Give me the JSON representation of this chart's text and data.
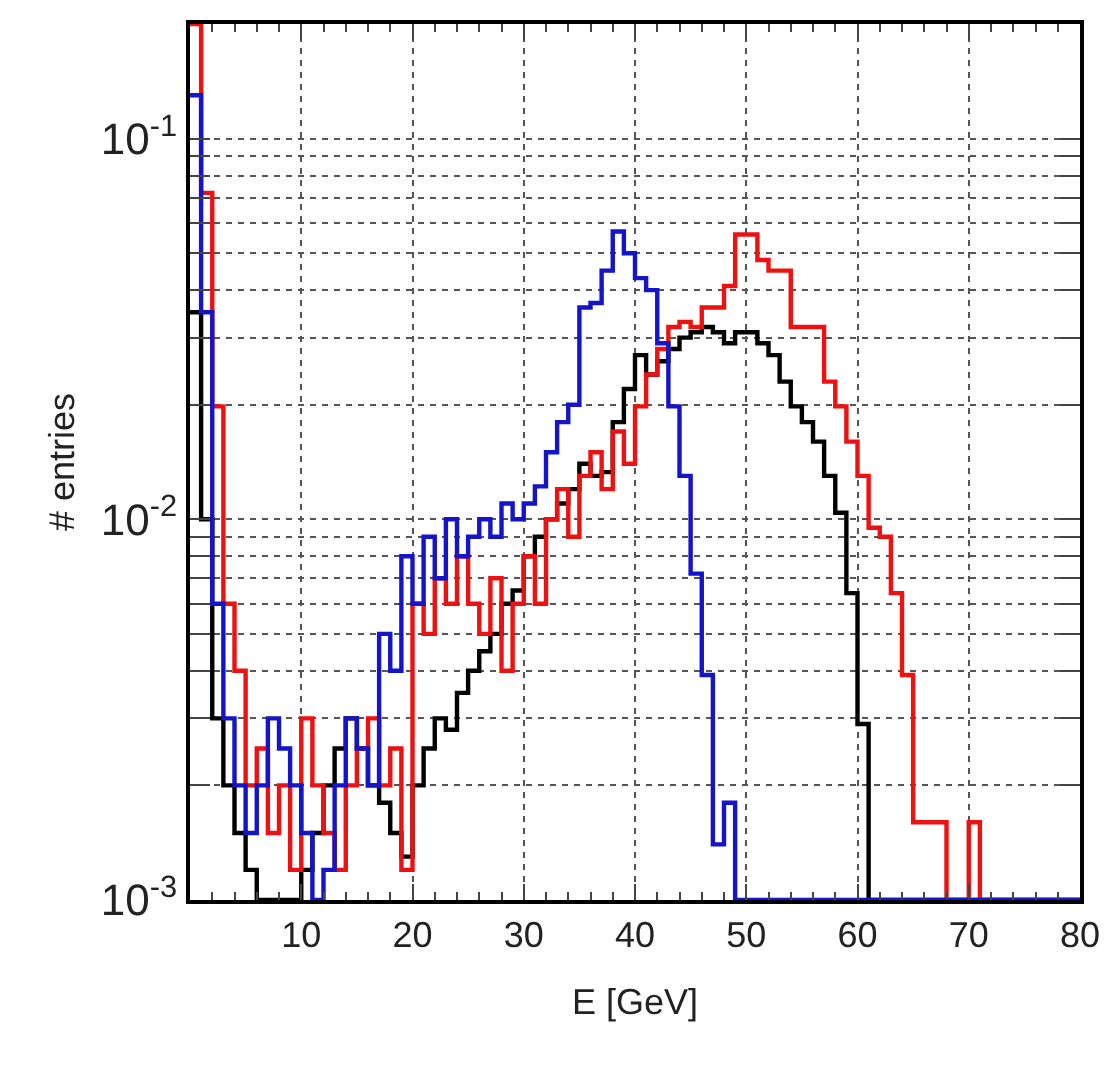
{
  "chart_data": {
    "type": "histogram",
    "xlabel": "E [GeV]",
    "ylabel": "# entries",
    "bins": [
      0,
      1,
      2,
      3,
      4,
      5,
      6,
      7,
      8,
      9,
      10,
      11,
      12,
      13,
      14,
      15,
      16,
      17,
      18,
      19,
      20,
      21,
      22,
      23,
      24,
      25,
      26,
      27,
      28,
      29,
      30,
      31,
      32,
      33,
      34,
      35,
      36,
      37,
      38,
      39,
      40,
      41,
      42,
      43,
      44,
      45,
      46,
      47,
      48,
      49,
      50,
      51,
      52,
      53,
      54,
      55,
      56,
      57,
      58,
      59,
      60,
      61,
      62,
      63,
      64,
      65,
      66,
      67,
      68,
      69,
      70,
      71,
      72,
      73,
      74,
      75,
      76,
      77,
      78,
      79,
      80
    ],
    "series": [
      {
        "color": "#000000",
        "values": [
          0.035,
          0.01,
          0.003,
          0.002,
          0.0015,
          0.0012,
          0.001,
          null,
          null,
          null,
          0.0012,
          0.0015,
          0.002,
          0.0025,
          0.003,
          0.0025,
          0.002,
          0.0018,
          0.0015,
          0.0013,
          0.002,
          0.0025,
          0.003,
          0.0028,
          0.0035,
          0.004,
          0.0045,
          0.005,
          0.006,
          0.0065,
          0.008,
          0.009,
          0.01,
          0.011,
          0.012,
          0.014,
          0.013,
          0.0133,
          0.018,
          0.022,
          0.027,
          0.024,
          0.026,
          0.028,
          0.03,
          0.031,
          0.032,
          0.031,
          0.029,
          0.031,
          0.031,
          0.029,
          0.027,
          0.023,
          0.0198,
          0.018,
          0.016,
          0.013,
          0.0104,
          0.0064,
          0.0029,
          0.001,
          null,
          null,
          null,
          null,
          null,
          null,
          null,
          null,
          null,
          null,
          null,
          null,
          null,
          null,
          null,
          null,
          null,
          null
        ]
      },
      {
        "color": "#ee1111",
        "values": [
          0.2,
          0.072,
          0.0198,
          0.006,
          0.004,
          0.002,
          0.0025,
          0.0015,
          0.002,
          0.0012,
          0.003,
          0.002,
          0.0015,
          0.0012,
          0.002,
          0.0025,
          0.003,
          0.002,
          0.0025,
          0.0012,
          0.006,
          0.005,
          0.007,
          0.006,
          0.008,
          0.006,
          0.005,
          0.007,
          0.004,
          0.006,
          0.008,
          0.006,
          0.01,
          0.012,
          0.009,
          0.013,
          0.015,
          0.012,
          0.017,
          0.014,
          0.0198,
          0.024,
          0.028,
          0.032,
          0.033,
          0.032,
          0.036,
          0.036,
          0.041,
          0.056,
          0.056,
          0.048,
          0.045,
          0.045,
          0.032,
          0.032,
          0.032,
          0.023,
          0.0198,
          0.016,
          0.013,
          0.0095,
          0.009,
          0.0064,
          0.0039,
          0.0016,
          0.0016,
          0.0016,
          null,
          null,
          0.0016,
          null,
          null,
          null,
          null,
          null,
          null,
          null,
          null,
          null
        ]
      },
      {
        "color": "#1414c8",
        "values": [
          0.13,
          0.035,
          0.006,
          0.003,
          0.002,
          0.0015,
          0.002,
          0.003,
          0.0025,
          0.002,
          0.0015,
          0.001,
          0.0012,
          0.002,
          0.003,
          0.0025,
          0.002,
          0.005,
          0.004,
          0.008,
          0.006,
          0.009,
          0.007,
          0.01,
          0.008,
          0.009,
          0.01,
          0.009,
          0.011,
          0.01,
          0.011,
          0.0122,
          0.015,
          0.018,
          0.02,
          0.036,
          0.037,
          0.045,
          0.057,
          0.05,
          0.043,
          0.04,
          0.029,
          0.0198,
          0.013,
          0.0072,
          0.0039,
          0.0014,
          0.0018,
          null,
          null,
          null,
          null,
          null,
          null,
          null,
          null,
          null,
          null,
          null,
          null,
          null,
          null,
          null,
          null,
          null,
          null,
          null,
          null,
          null,
          null,
          null,
          null,
          null,
          null,
          null,
          null,
          null,
          null,
          null
        ]
      }
    ],
    "xlim": [
      0,
      80
    ],
    "xticks": [
      10,
      20,
      30,
      40,
      50,
      60,
      70,
      80
    ],
    "ylim": [
      0.001,
      0.2
    ],
    "yticks": [
      {
        "value": 0.001,
        "label": "10$^{-3}$"
      },
      {
        "value": 0.002,
        "label": null
      },
      {
        "value": 0.003,
        "label": null
      },
      {
        "value": 0.004,
        "label": null
      },
      {
        "value": 0.005,
        "label": null
      },
      {
        "value": 0.006,
        "label": null
      },
      {
        "value": 0.007,
        "label": null
      },
      {
        "value": 0.008,
        "label": null
      },
      {
        "value": 0.009,
        "label": null
      },
      {
        "value": 0.01,
        "label": "10$^{-2}$"
      },
      {
        "value": 0.02,
        "label": null
      },
      {
        "value": 0.03,
        "label": null
      },
      {
        "value": 0.04,
        "label": null
      },
      {
        "value": 0.05,
        "label": null
      },
      {
        "value": 0.06,
        "label": null
      },
      {
        "value": 0.07,
        "label": null
      },
      {
        "value": 0.08,
        "label": null
      },
      {
        "value": 0.09,
        "label": null
      },
      {
        "value": 0.1,
        "label": "10$^{-1}$"
      },
      {
        "value": 0.2,
        "label": null
      }
    ],
    "log": "y",
    "grid": true
  }
}
